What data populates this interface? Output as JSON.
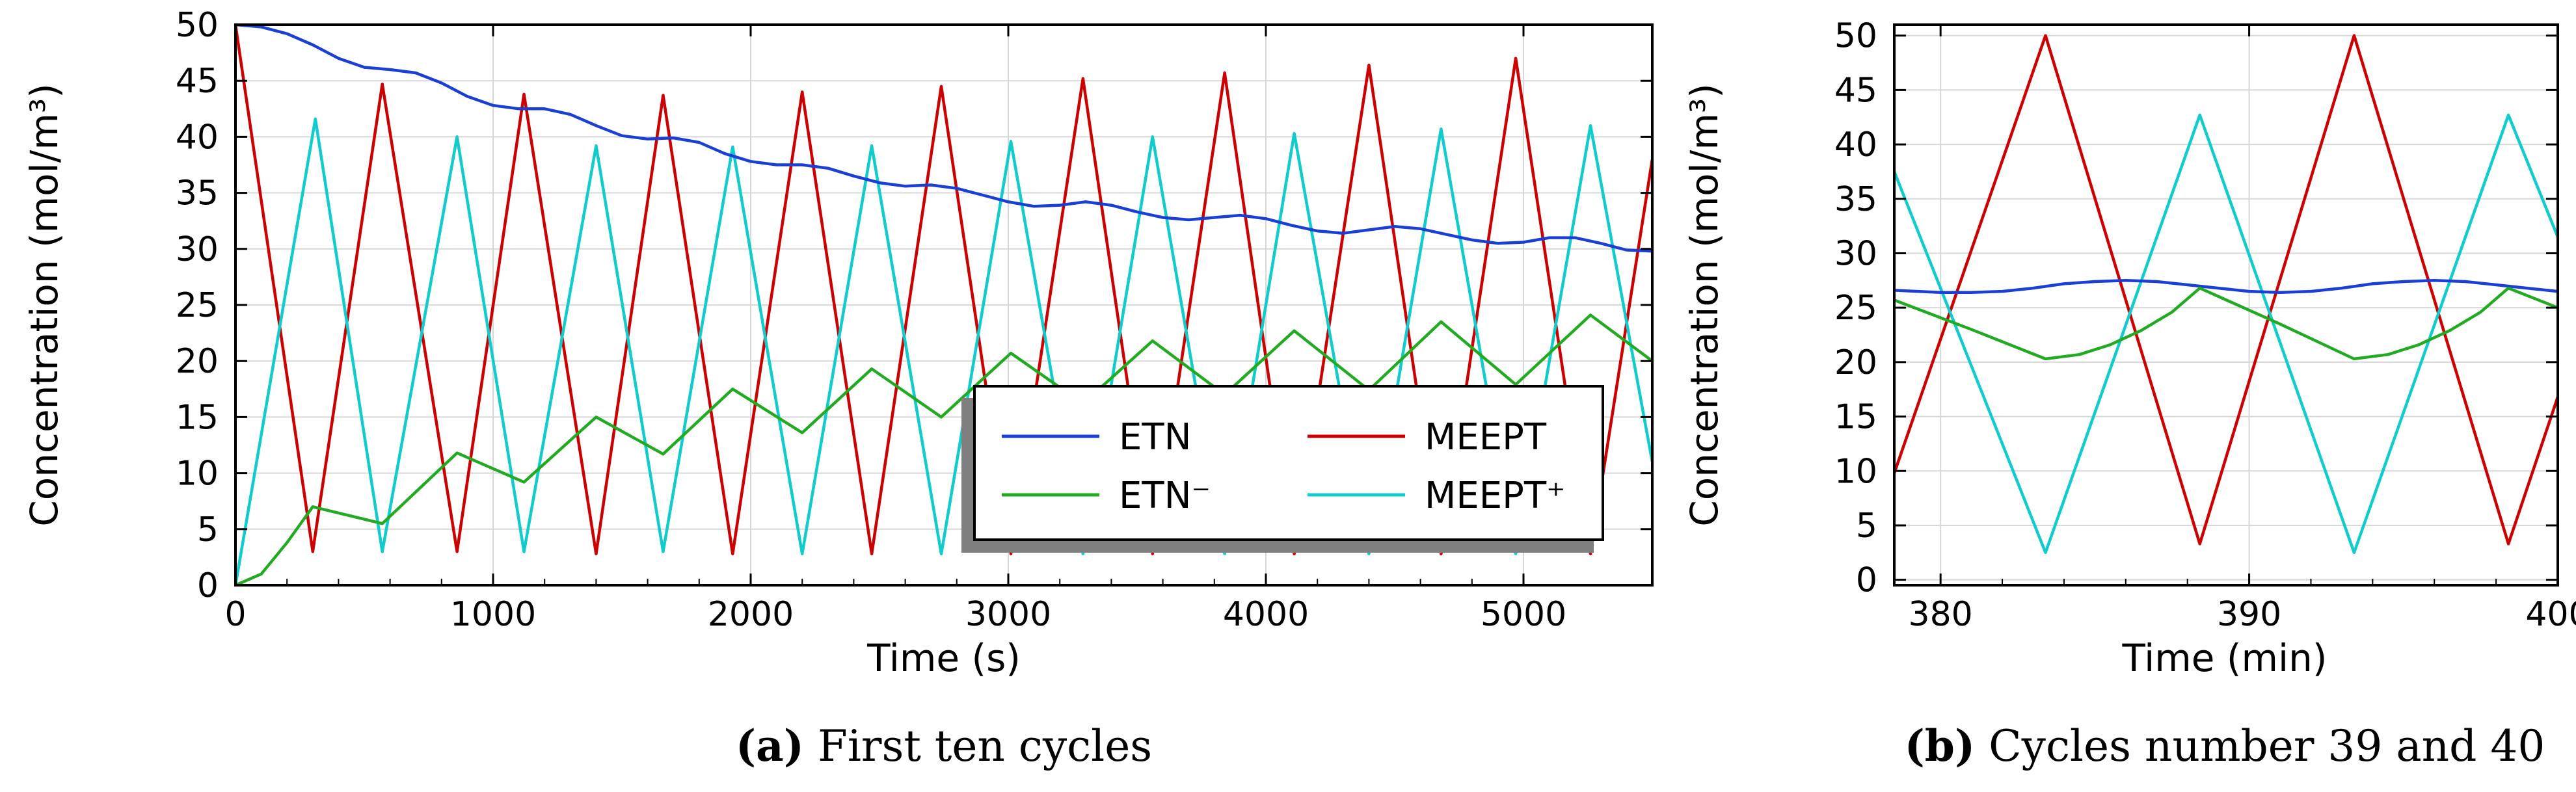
{
  "colors": {
    "ETN": "#1a3fd6",
    "ETN_minus": "#22aa22",
    "MEEPT": "#cc0000",
    "MEEPT_plus": "#11cccc"
  },
  "chart_data": [
    {
      "type": "line",
      "caption_letter": "(a)",
      "caption_text": " First ten cycles",
      "xlabel": "Time (s)",
      "ylabel": "Concentration (mol/m³)",
      "xlim": [
        0,
        5500
      ],
      "ylim": [
        0,
        50
      ],
      "xticks": [
        "0",
        "1000",
        "2000",
        "3000",
        "4000",
        "5000"
      ],
      "yticks": [
        "0",
        "5",
        "10",
        "15",
        "20",
        "25",
        "30",
        "35",
        "40",
        "45",
        "50"
      ],
      "grid": true,
      "legend_position": "lower-right",
      "legend": [
        {
          "label": "ETN",
          "series": "ETN"
        },
        {
          "label": "MEEPT",
          "series": "MEEPT"
        },
        {
          "label": "ETN⁻",
          "series": "ETN_minus"
        },
        {
          "label": "MEEPT⁺",
          "series": "MEEPT_plus"
        }
      ],
      "series": [
        {
          "name": "MEEPT",
          "color_key": "MEEPT",
          "x": [
            0,
            300,
            570,
            860,
            1120,
            1400,
            1660,
            1930,
            2200,
            2470,
            2740,
            3010,
            3290,
            3560,
            3840,
            4110,
            4400,
            4680,
            4970,
            5260,
            5500
          ],
          "y": [
            50,
            3,
            44.7,
            3,
            43.8,
            2.8,
            43.7,
            2.8,
            44,
            2.8,
            44.5,
            2.8,
            45.2,
            2.8,
            45.7,
            2.8,
            46.4,
            2.8,
            47,
            2.8,
            38
          ]
        },
        {
          "name": "MEEPT⁺",
          "color_key": "MEEPT_plus",
          "x": [
            0,
            310,
            570,
            860,
            1120,
            1400,
            1660,
            1930,
            2200,
            2470,
            2740,
            3010,
            3290,
            3560,
            3840,
            4110,
            4400,
            4680,
            4970,
            5260,
            5500
          ],
          "y": [
            0,
            41.6,
            3,
            40,
            3,
            39.2,
            3,
            39.1,
            2.8,
            39.2,
            2.8,
            39.6,
            2.8,
            40,
            2.8,
            40.3,
            2.8,
            40.7,
            2.8,
            41,
            11
          ]
        },
        {
          "name": "ETN",
          "color_key": "ETN",
          "x": [
            0,
            100,
            200,
            300,
            400,
            500,
            600,
            700,
            800,
            900,
            1000,
            1100,
            1200,
            1300,
            1400,
            1500,
            1600,
            1700,
            1800,
            1900,
            2000,
            2100,
            2200,
            2300,
            2400,
            2500,
            2600,
            2700,
            2800,
            2900,
            3000,
            3100,
            3200,
            3300,
            3400,
            3500,
            3600,
            3700,
            3800,
            3900,
            4000,
            4100,
            4200,
            4300,
            4400,
            4500,
            4600,
            4700,
            4800,
            4900,
            5000,
            5100,
            5200,
            5300,
            5400,
            5500
          ],
          "y": [
            50,
            49.8,
            49.2,
            48.2,
            47,
            46.2,
            46,
            45.7,
            44.8,
            43.6,
            42.8,
            42.5,
            42.5,
            42,
            41,
            40.1,
            39.8,
            39.9,
            39.5,
            38.5,
            37.8,
            37.5,
            37.5,
            37.2,
            36.5,
            35.9,
            35.6,
            35.7,
            35.4,
            34.8,
            34.2,
            33.8,
            33.9,
            34.2,
            33.9,
            33.3,
            32.8,
            32.6,
            32.8,
            33,
            32.7,
            32.1,
            31.6,
            31.4,
            31.7,
            32,
            31.8,
            31.3,
            30.8,
            30.5,
            30.6,
            31,
            31,
            30.5,
            29.9,
            29.8
          ]
        },
        {
          "name": "ETN⁻",
          "color_key": "ETN_minus",
          "x": [
            0,
            100,
            200,
            300,
            570,
            860,
            1120,
            1400,
            1660,
            1930,
            2200,
            2470,
            2740,
            3010,
            3290,
            3560,
            3840,
            4110,
            4400,
            4680,
            4970,
            5260,
            5500
          ],
          "y": [
            0,
            1,
            3.8,
            7,
            5.5,
            11.8,
            9.2,
            15,
            11.7,
            17.5,
            13.6,
            19.3,
            15,
            20.7,
            16.2,
            21.8,
            17,
            22.7,
            17.4,
            23.5,
            17.9,
            24.1,
            20
          ]
        }
      ]
    },
    {
      "type": "line",
      "caption_letter": "(b)",
      "caption_text": " Cycles number 39 and 40",
      "xlabel": "Time (min)",
      "ylabel": "Concentration (mol/m³)",
      "xlim": [
        378.5,
        400
      ],
      "ylim": [
        -0.5,
        51
      ],
      "xticks": [
        "380",
        "390",
        "400"
      ],
      "xtick_values": [
        380,
        390,
        400
      ],
      "yticks": [
        "0",
        "5",
        "10",
        "15",
        "20",
        "25",
        "30",
        "35",
        "40",
        "45",
        "50"
      ],
      "grid": true,
      "series": [
        {
          "name": "MEEPT",
          "color_key": "MEEPT",
          "x": [
            378.5,
            383.4,
            388.4,
            393.4,
            398.4,
            400
          ],
          "y": [
            9.8,
            50,
            3.3,
            50,
            3.3,
            16.8
          ]
        },
        {
          "name": "MEEPT⁺",
          "color_key": "MEEPT_plus",
          "x": [
            378.5,
            383.4,
            388.4,
            393.4,
            398.4,
            400
          ],
          "y": [
            37.5,
            2.5,
            42.7,
            2.5,
            42.7,
            31.5
          ]
        },
        {
          "name": "ETN",
          "color_key": "ETN",
          "x": [
            378.5,
            380,
            381,
            382,
            383,
            384,
            385,
            386,
            387,
            388,
            389,
            390,
            391,
            392,
            393,
            394,
            395,
            396,
            397,
            398,
            399,
            400
          ],
          "y": [
            26.6,
            26.4,
            26.4,
            26.5,
            26.8,
            27.2,
            27.4,
            27.5,
            27.4,
            27.1,
            26.8,
            26.5,
            26.4,
            26.5,
            26.8,
            27.2,
            27.4,
            27.5,
            27.4,
            27.1,
            26.8,
            26.5
          ]
        },
        {
          "name": "ETN⁻",
          "color_key": "ETN_minus",
          "x": [
            378.5,
            381,
            383.4,
            384.5,
            385.5,
            386.5,
            387.5,
            388.4,
            391,
            393.4,
            394.5,
            395.5,
            396.5,
            397.5,
            398.4,
            400
          ],
          "y": [
            25.7,
            23,
            20.3,
            20.7,
            21.6,
            22.9,
            24.6,
            26.8,
            23.5,
            20.3,
            20.7,
            21.6,
            22.9,
            24.6,
            26.8,
            25
          ]
        }
      ]
    }
  ]
}
